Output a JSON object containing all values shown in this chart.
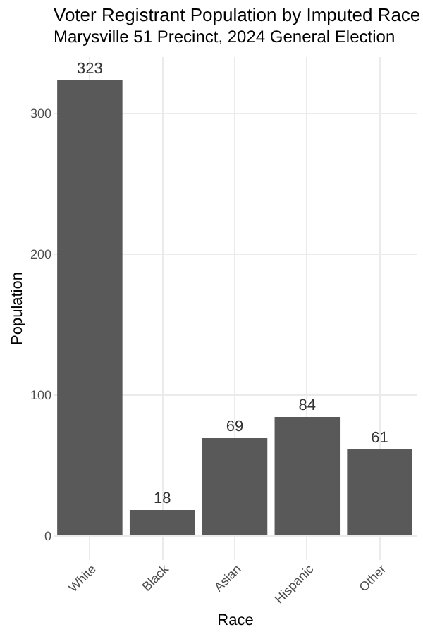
{
  "chart_data": {
    "type": "bar",
    "title": "Voter Registrant Population by Imputed Race",
    "subtitle": "Marysville 51 Precinct,  2024 General Election",
    "xlabel": "Race",
    "ylabel": "Population",
    "categories": [
      "White",
      "Black",
      "Asian",
      "Hispanic",
      "Other"
    ],
    "values": [
      323,
      18,
      69,
      84,
      61
    ],
    "color": "#595959",
    "ylim": [
      -17,
      340
    ],
    "yticks": [
      0,
      100,
      200,
      300
    ],
    "grid": true,
    "data_labels": true
  }
}
